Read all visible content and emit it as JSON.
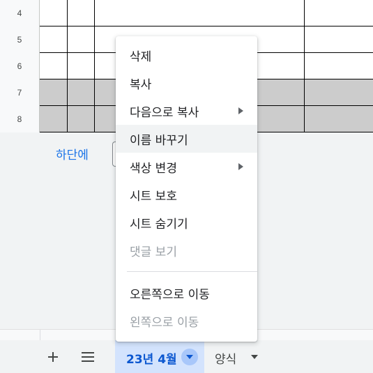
{
  "grid": {
    "rows": [
      {
        "number": "4",
        "shaded": false
      },
      {
        "number": "5",
        "shaded": false
      },
      {
        "number": "6",
        "shaded": false
      },
      {
        "number": "7",
        "shaded": true
      },
      {
        "number": "8",
        "shaded": true
      }
    ]
  },
  "add_rows": {
    "label": "하단에"
  },
  "context_menu": {
    "items": [
      {
        "label": "삭제",
        "submenu": false,
        "disabled": false,
        "hover": false
      },
      {
        "label": "복사",
        "submenu": false,
        "disabled": false,
        "hover": false
      },
      {
        "label": "다음으로 복사",
        "submenu": true,
        "disabled": false,
        "hover": false
      },
      {
        "label": "이름 바꾸기",
        "submenu": false,
        "disabled": false,
        "hover": true
      },
      {
        "label": "색상 변경",
        "submenu": true,
        "disabled": false,
        "hover": false
      },
      {
        "label": "시트 보호",
        "submenu": false,
        "disabled": false,
        "hover": false
      },
      {
        "label": "시트 숨기기",
        "submenu": false,
        "disabled": false,
        "hover": false
      },
      {
        "label": "댓글 보기",
        "submenu": false,
        "disabled": true,
        "hover": false
      },
      {
        "label": "오른쪽으로 이동",
        "submenu": false,
        "disabled": false,
        "hover": false
      },
      {
        "label": "왼쪽으로 이동",
        "submenu": false,
        "disabled": true,
        "hover": false
      }
    ]
  },
  "sheet_bar": {
    "add_sheet_icon": "plus-icon",
    "all_sheets_icon": "menu-lines-icon",
    "tabs": [
      {
        "label": "23년 4월",
        "active": true
      },
      {
        "label": "양식",
        "active": false
      }
    ]
  },
  "colors": {
    "accent": "#1a73e8",
    "active_tab_bg": "#d3e3fd",
    "active_tab_text": "#0b57d0",
    "shaded_row": "#cccccc",
    "disabled_text": "#9aa0a6"
  }
}
